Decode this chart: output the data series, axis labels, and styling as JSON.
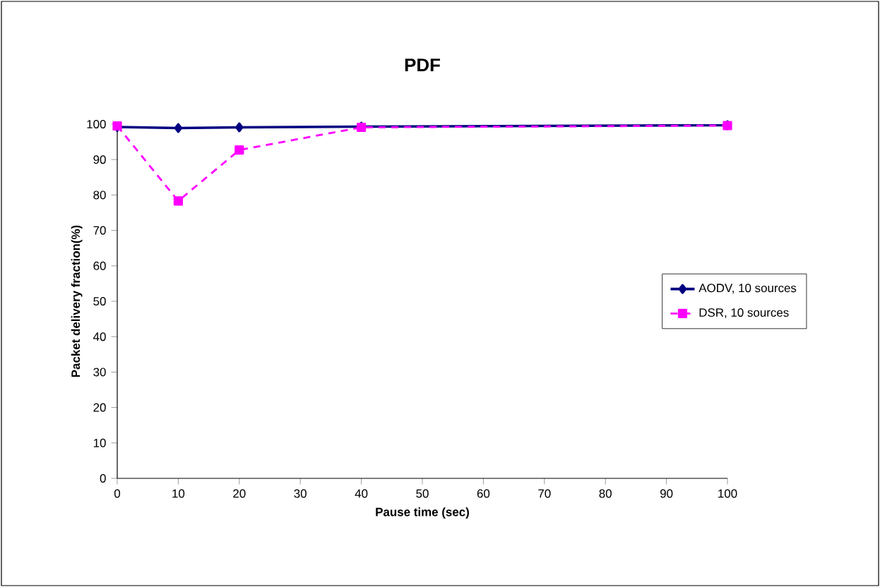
{
  "chart_data": {
    "type": "line",
    "title": "PDF",
    "xlabel": "Pause time (sec)",
    "ylabel": "Packet delivery fraction(%)",
    "x": [
      0,
      10,
      20,
      40,
      100
    ],
    "series": [
      {
        "name": "AODV, 10 sources",
        "color": "#000080",
        "marker": "diamond",
        "line_style": "solid",
        "values": [
          99.2,
          98.9,
          99.1,
          99.3,
          99.7
        ]
      },
      {
        "name": "DSR, 10 sources",
        "color": "#ff00ff",
        "marker": "square",
        "line_style": "dashed",
        "values": [
          99.5,
          78.3,
          92.7,
          99.1,
          99.6
        ]
      }
    ],
    "xlim": [
      0,
      100
    ],
    "xticks": [
      0,
      10,
      20,
      30,
      40,
      50,
      60,
      70,
      80,
      90,
      100
    ],
    "ylim": [
      0,
      100
    ],
    "yticks": [
      0,
      10,
      20,
      30,
      40,
      50,
      60,
      70,
      80,
      90,
      100
    ],
    "grid": false,
    "legend": "right"
  }
}
